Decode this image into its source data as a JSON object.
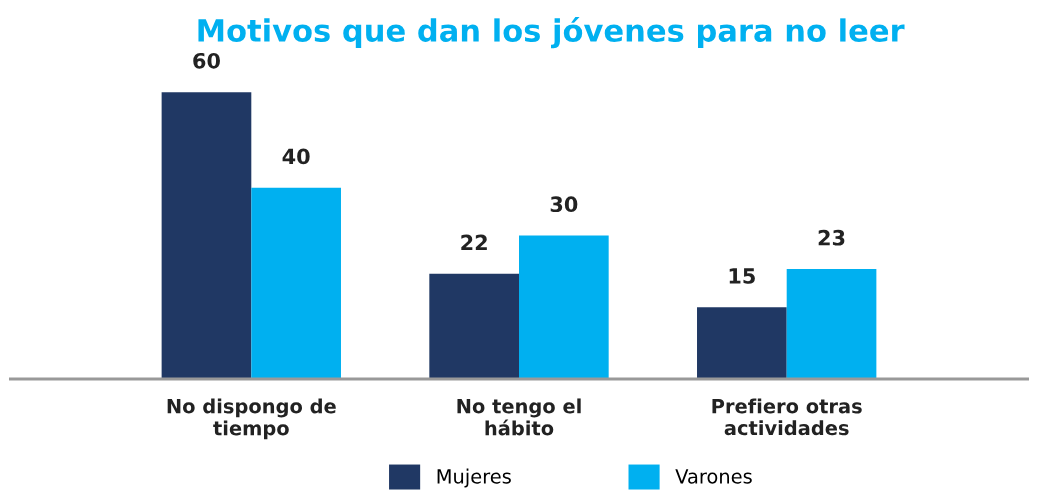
{
  "chart_data": {
    "type": "bar",
    "title": "Motivos que dan los jóvenes para no leer",
    "categories": [
      "No dispongo de\ntiempo",
      "No tengo el\nhábito",
      "Prefiero otras\nactividades"
    ],
    "series": [
      {
        "name": "Mujeres",
        "color": "#203864",
        "values": [
          60,
          22,
          15
        ]
      },
      {
        "name": "Varones",
        "color": "#00b0f0",
        "values": [
          40,
          30,
          23
        ]
      }
    ],
    "data_labels": true,
    "legend": "bottom",
    "grid": false
  }
}
